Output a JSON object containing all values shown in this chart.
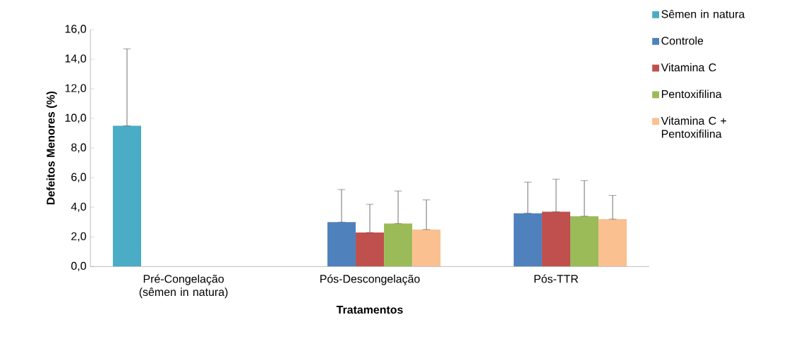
{
  "chart_data": {
    "type": "bar",
    "xlabel": "Tratamentos",
    "ylabel": "Defeitos Menores (%)",
    "categories": [
      "Pré-Congelação (sêmen in natura)",
      "Pós-Descongelação",
      "Pós-TTR"
    ],
    "series": [
      {
        "name": "Sêmen in natura",
        "color": "#4bacc6",
        "values": [
          9.5,
          null,
          null
        ],
        "errors": [
          [
            9.5,
            14.7
          ],
          null,
          null
        ]
      },
      {
        "name": "Controle",
        "color": "#4f81bd",
        "values": [
          null,
          3.0,
          3.6
        ],
        "errors": [
          null,
          [
            3.0,
            5.2
          ],
          [
            3.6,
            5.7
          ]
        ]
      },
      {
        "name": "Vitamina C",
        "color": "#c0504d",
        "values": [
          null,
          2.3,
          3.7
        ],
        "errors": [
          null,
          [
            2.3,
            4.2
          ],
          [
            3.7,
            5.9
          ]
        ]
      },
      {
        "name": "Pentoxifilina",
        "color": "#9bbb59",
        "values": [
          null,
          2.9,
          3.4
        ],
        "errors": [
          null,
          [
            2.9,
            5.1
          ],
          [
            3.4,
            5.8
          ]
        ]
      },
      {
        "name": "Vitamina C + Pentoxifilina",
        "color": "#fac090",
        "values": [
          null,
          2.5,
          3.2
        ],
        "errors": [
          null,
          [
            2.5,
            4.5
          ],
          [
            3.2,
            4.8
          ]
        ]
      }
    ],
    "ylim": [
      0,
      16
    ],
    "yticks": [
      {
        "value": 0,
        "label": "0,0"
      },
      {
        "value": 2,
        "label": "2,0"
      },
      {
        "value": 4,
        "label": "4,0"
      },
      {
        "value": 6,
        "label": "6,0"
      },
      {
        "value": 8,
        "label": "8,0"
      },
      {
        "value": 10,
        "label": "10,0"
      },
      {
        "value": 12,
        "label": "12,0"
      },
      {
        "value": 14,
        "label": "14,0"
      },
      {
        "value": 16,
        "label": "16,0"
      }
    ],
    "legend": "right",
    "grid": false
  }
}
